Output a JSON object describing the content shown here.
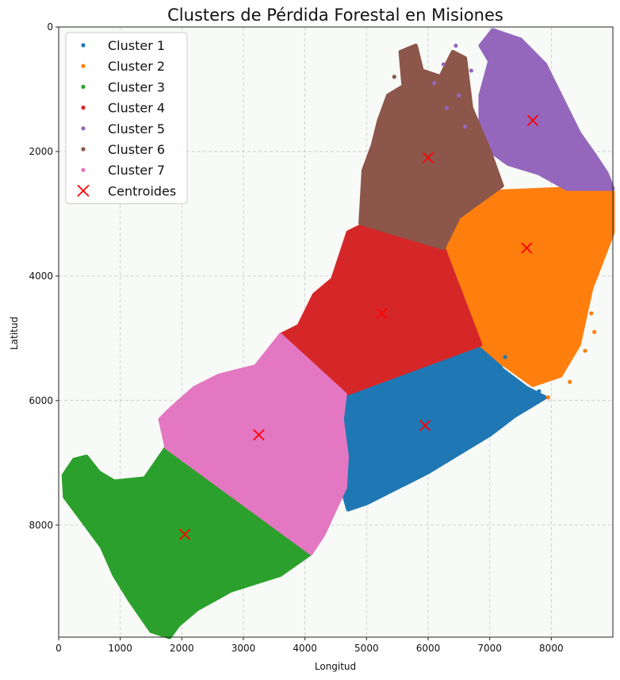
{
  "chart_data": {
    "type": "scatter",
    "title": "Clusters de Pérdida Forestal en Misiones",
    "xlabel": "Longitud",
    "ylabel": "Latitud",
    "xlim": [
      0,
      9000
    ],
    "ylim": [
      9800,
      0
    ],
    "y_inverted": true,
    "x_ticks": [
      0,
      1000,
      2000,
      3000,
      4000,
      5000,
      6000,
      7000,
      8000
    ],
    "y_ticks": [
      0,
      2000,
      4000,
      6000,
      8000
    ],
    "grid": true,
    "legend_position": "top-left",
    "background_color": "#f8faf7",
    "series": [
      {
        "name": "Cluster 1",
        "color": "#1f77b4",
        "region": [
          [
            4650,
            5900
          ],
          [
            6850,
            5100
          ],
          [
            7000,
            5200
          ],
          [
            7200,
            5500
          ],
          [
            7600,
            5800
          ],
          [
            7900,
            5950
          ],
          [
            7400,
            6250
          ],
          [
            7000,
            6550
          ],
          [
            6500,
            6850
          ],
          [
            6000,
            7150
          ],
          [
            5500,
            7400
          ],
          [
            5000,
            7650
          ],
          [
            4700,
            7750
          ],
          [
            4600,
            7400
          ],
          [
            4680,
            6900
          ]
        ]
      },
      {
        "name": "Cluster 2",
        "color": "#ff7f0e",
        "region": [
          [
            6250,
            3500
          ],
          [
            6500,
            3050
          ],
          [
            7000,
            2650
          ],
          [
            8200,
            2600
          ],
          [
            9000,
            2650
          ],
          [
            9000,
            3300
          ],
          [
            8650,
            4200
          ],
          [
            8450,
            5100
          ],
          [
            8150,
            5600
          ],
          [
            7700,
            5750
          ],
          [
            7200,
            5400
          ],
          [
            6850,
            5100
          ],
          [
            6500,
            4550
          ],
          [
            6350,
            3950
          ]
        ]
      },
      {
        "name": "Cluster 3",
        "color": "#2ca02c",
        "region": [
          [
            1750,
            6750
          ],
          [
            4100,
            8450
          ],
          [
            3600,
            8800
          ],
          [
            2800,
            9050
          ],
          [
            2250,
            9350
          ],
          [
            1950,
            9600
          ],
          [
            1800,
            9800
          ],
          [
            1500,
            9700
          ],
          [
            1150,
            9200
          ],
          [
            900,
            8800
          ],
          [
            700,
            8350
          ],
          [
            400,
            7950
          ],
          [
            100,
            7550
          ],
          [
            80,
            7200
          ],
          [
            250,
            6950
          ],
          [
            450,
            6900
          ],
          [
            650,
            7150
          ],
          [
            900,
            7300
          ],
          [
            1400,
            7250
          ]
        ]
      },
      {
        "name": "Cluster 4",
        "color": "#d62728",
        "region": [
          [
            3600,
            4950
          ],
          [
            3900,
            4800
          ],
          [
            4150,
            4300
          ],
          [
            4450,
            4050
          ],
          [
            4700,
            3300
          ],
          [
            4900,
            3200
          ],
          [
            6250,
            3550
          ],
          [
            6850,
            5100
          ],
          [
            4650,
            5900
          ]
        ]
      },
      {
        "name": "Cluster 5",
        "color": "#9467bd",
        "region": [
          [
            7000,
            550
          ],
          [
            6850,
            300
          ],
          [
            7050,
            50
          ],
          [
            7500,
            200
          ],
          [
            7900,
            600
          ],
          [
            8200,
            1200
          ],
          [
            8450,
            1700
          ],
          [
            8700,
            2050
          ],
          [
            8900,
            2350
          ],
          [
            9000,
            2600
          ],
          [
            8250,
            2600
          ],
          [
            7800,
            2350
          ],
          [
            7300,
            2200
          ],
          [
            6950,
            1950
          ],
          [
            6850,
            1500
          ],
          [
            6850,
            1100
          ]
        ]
      },
      {
        "name": "Cluster 6",
        "color": "#8c564b",
        "region": [
          [
            4900,
            3150
          ],
          [
            4950,
            2300
          ],
          [
            5100,
            1900
          ],
          [
            5200,
            1500
          ],
          [
            5350,
            1100
          ],
          [
            5600,
            950
          ],
          [
            5550,
            400
          ],
          [
            5800,
            300
          ],
          [
            5900,
            700
          ],
          [
            6200,
            800
          ],
          [
            6400,
            400
          ],
          [
            6600,
            500
          ],
          [
            6700,
            1300
          ],
          [
            7000,
            2000
          ],
          [
            7200,
            2550
          ],
          [
            6500,
            3050
          ],
          [
            6250,
            3550
          ]
        ]
      },
      {
        "name": "Cluster 7",
        "color": "#e377c2",
        "region": [
          [
            1650,
            6300
          ],
          [
            1800,
            6150
          ],
          [
            2200,
            5800
          ],
          [
            2600,
            5600
          ],
          [
            3200,
            5450
          ],
          [
            3600,
            4950
          ],
          [
            4650,
            5900
          ],
          [
            4600,
            6300
          ],
          [
            4680,
            6900
          ],
          [
            4650,
            7400
          ],
          [
            4300,
            8150
          ],
          [
            4100,
            8450
          ],
          [
            1750,
            6750
          ]
        ]
      }
    ],
    "centroids": {
      "name": "Centroides",
      "color": "#ff0000",
      "points": [
        [
          5950,
          6400
        ],
        [
          7600,
          3550
        ],
        [
          2050,
          8150
        ],
        [
          5250,
          4600
        ],
        [
          7700,
          1500
        ],
        [
          6000,
          2100
        ],
        [
          3250,
          6550
        ]
      ]
    }
  }
}
